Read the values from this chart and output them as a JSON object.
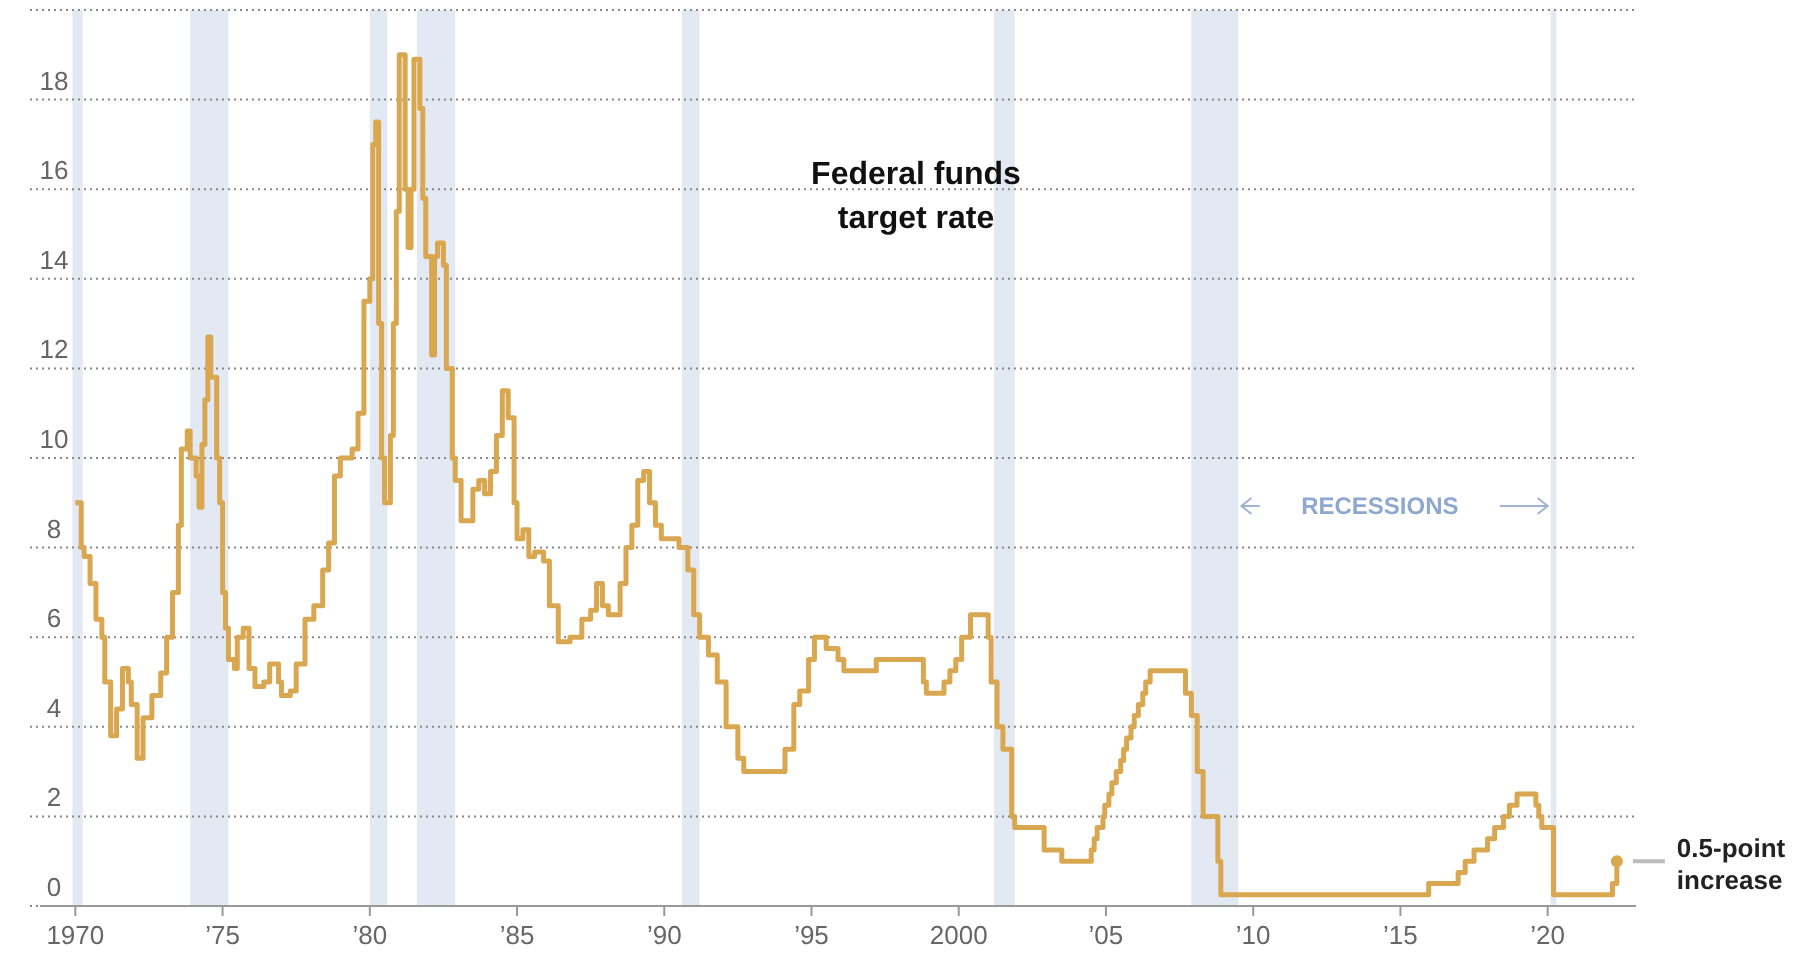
{
  "chart_data": {
    "type": "step",
    "title": "Federal funds target rate",
    "annotations": [
      "RECESSIONS",
      {
        "text": "0.5-point increase",
        "x": 2022.35,
        "y": 1
      }
    ],
    "xlim": [
      1968.8,
      2023
    ],
    "xticks": [
      {
        "value": 1970,
        "label": "1970"
      },
      {
        "value": 1975,
        "label": "’75"
      },
      {
        "value": 1980,
        "label": "’80"
      },
      {
        "value": 1985,
        "label": "’85"
      },
      {
        "value": 1990,
        "label": "’90"
      },
      {
        "value": 1995,
        "label": "’95"
      },
      {
        "value": 2000,
        "label": "2000"
      },
      {
        "value": 2005,
        "label": "’05"
      },
      {
        "value": 2010,
        "label": "’10"
      },
      {
        "value": 2015,
        "label": "’15"
      },
      {
        "value": 2020,
        "label": "’20"
      }
    ],
    "ylim": [
      0,
      20
    ],
    "yticks": [
      0,
      2,
      4,
      6,
      8,
      10,
      12,
      14,
      16,
      18,
      {
        "value": 20,
        "label": null
      }
    ],
    "grid": "y",
    "bands": [
      {
        "axis": "x",
        "from": 1969.9,
        "to": 1970.25,
        "color": "#e3e9f2"
      },
      {
        "axis": "x",
        "from": 1973.9,
        "to": 1975.2,
        "color": "#e3e9f2"
      },
      {
        "axis": "x",
        "from": 1980.0,
        "to": 1980.6,
        "color": "#e3e9f2"
      },
      {
        "axis": "x",
        "from": 1981.6,
        "to": 1982.9,
        "color": "#e3e9f2"
      },
      {
        "axis": "x",
        "from": 1990.6,
        "to": 1991.2,
        "color": "#e3e9f2"
      },
      {
        "axis": "x",
        "from": 2001.2,
        "to": 2001.9,
        "color": "#e3e9f2"
      },
      {
        "axis": "x",
        "from": 2007.9,
        "to": 2009.5,
        "color": "#e3e9f2"
      },
      {
        "axis": "x",
        "from": 2020.1,
        "to": 2020.3,
        "color": "#e3e9f2"
      }
    ],
    "series": [
      {
        "color": "#d9a74f",
        "x": [
          1970.0,
          1970.2,
          1970.3,
          1970.5,
          1970.7,
          1970.9,
          1971.0,
          1971.2,
          1971.4,
          1971.6,
          1971.8,
          1971.9,
          1972.1,
          1972.3,
          1972.6,
          1972.9,
          1973.1,
          1973.3,
          1973.5,
          1973.6,
          1973.8,
          1973.9,
          1974.1,
          1974.2,
          1974.3,
          1974.4,
          1974.5,
          1974.6,
          1974.8,
          1974.9,
          1975.0,
          1975.1,
          1975.2,
          1975.4,
          1975.5,
          1975.7,
          1975.9,
          1976.1,
          1976.4,
          1976.6,
          1976.9,
          1977.0,
          1977.3,
          1977.5,
          1977.8,
          1978.1,
          1978.4,
          1978.6,
          1978.8,
          1979.0,
          1979.4,
          1979.6,
          1979.8,
          1980.0,
          1980.1,
          1980.2,
          1980.3,
          1980.4,
          1980.5,
          1980.7,
          1980.8,
          1980.9,
          1981.0,
          1981.2,
          1981.3,
          1981.4,
          1981.5,
          1981.7,
          1981.8,
          1981.9,
          1982.1,
          1982.2,
          1982.3,
          1982.5,
          1982.6,
          1982.8,
          1982.9,
          1983.1,
          1983.3,
          1983.5,
          1983.7,
          1983.9,
          1984.1,
          1984.3,
          1984.5,
          1984.7,
          1984.9,
          1985.0,
          1985.2,
          1985.4,
          1985.6,
          1985.9,
          1986.1,
          1986.4,
          1986.8,
          1987.2,
          1987.5,
          1987.7,
          1987.9,
          1988.1,
          1988.5,
          1988.7,
          1988.9,
          1989.1,
          1989.3,
          1989.5,
          1989.7,
          1989.9,
          1990.5,
          1990.8,
          1991.0,
          1991.2,
          1991.5,
          1991.8,
          1992.1,
          1992.5,
          1992.7,
          1994.1,
          1994.4,
          1994.6,
          1994.9,
          1995.1,
          1995.5,
          1995.9,
          1996.1,
          1997.2,
          1998.8,
          1998.9,
          1999.5,
          1999.7,
          1999.9,
          2000.1,
          2000.4,
          2001.0,
          2001.1,
          2001.3,
          2001.5,
          2001.8,
          2001.9,
          2002.9,
          2003.5,
          2004.5,
          2004.6,
          2004.7,
          2004.9,
          2004.96,
          2005.1,
          2005.2,
          2005.35,
          2005.5,
          2005.6,
          2005.7,
          2005.85,
          2005.96,
          2006.1,
          2006.25,
          2006.35,
          2006.5,
          2007.7,
          2007.9,
          2008.1,
          2008.3,
          2008.8,
          2008.9,
          2015.96,
          2016.96,
          2017.2,
          2017.5,
          2017.96,
          2018.2,
          2018.5,
          2018.7,
          2018.96,
          2019.6,
          2019.7,
          2019.8,
          2020.2,
          2022.2,
          2022.35
        ],
        "values": [
          9.0,
          8.0,
          7.8,
          7.2,
          6.4,
          6.0,
          5.0,
          3.8,
          4.4,
          5.3,
          5.0,
          4.5,
          3.3,
          4.2,
          4.7,
          5.2,
          6.0,
          7.0,
          8.5,
          10.2,
          10.6,
          10.0,
          9.6,
          8.9,
          10.3,
          11.3,
          12.7,
          11.8,
          10.0,
          9.0,
          7.0,
          6.2,
          5.5,
          5.3,
          6.0,
          6.2,
          5.3,
          4.9,
          5.0,
          5.4,
          5.0,
          4.7,
          4.8,
          5.4,
          6.4,
          6.7,
          7.5,
          8.1,
          9.6,
          10.0,
          10.2,
          11.0,
          13.5,
          14.0,
          17.0,
          17.5,
          13.0,
          10.0,
          9.0,
          10.5,
          13.0,
          15.5,
          19.0,
          16.0,
          14.7,
          16.0,
          18.9,
          17.8,
          15.8,
          14.5,
          12.3,
          14.5,
          14.8,
          14.3,
          12.0,
          10.0,
          9.5,
          8.6,
          8.6,
          9.3,
          9.5,
          9.2,
          9.7,
          10.5,
          11.5,
          10.9,
          9.0,
          8.2,
          8.4,
          7.8,
          7.9,
          7.7,
          6.7,
          5.9,
          6.0,
          6.4,
          6.6,
          7.2,
          6.7,
          6.5,
          7.2,
          8.0,
          8.5,
          9.5,
          9.7,
          9.0,
          8.5,
          8.2,
          8.0,
          7.5,
          6.5,
          6.0,
          5.6,
          5.0,
          4.0,
          3.3,
          3.0,
          3.5,
          4.5,
          4.8,
          5.5,
          6.0,
          5.75,
          5.5,
          5.25,
          5.5,
          5.0,
          4.75,
          5.0,
          5.25,
          5.5,
          6.0,
          6.5,
          6.0,
          5.0,
          4.0,
          3.5,
          2.0,
          1.75,
          1.25,
          1.0,
          1.25,
          1.5,
          1.75,
          2.0,
          2.25,
          2.5,
          2.75,
          3.0,
          3.25,
          3.5,
          3.75,
          4.0,
          4.25,
          4.5,
          4.75,
          5.0,
          5.25,
          4.75,
          4.25,
          3.0,
          2.0,
          1.0,
          0.25,
          0.5,
          0.75,
          1.0,
          1.25,
          1.5,
          1.75,
          2.0,
          2.25,
          2.5,
          2.25,
          2.0,
          1.75,
          0.25,
          0.5,
          1.0
        ]
      }
    ]
  }
}
